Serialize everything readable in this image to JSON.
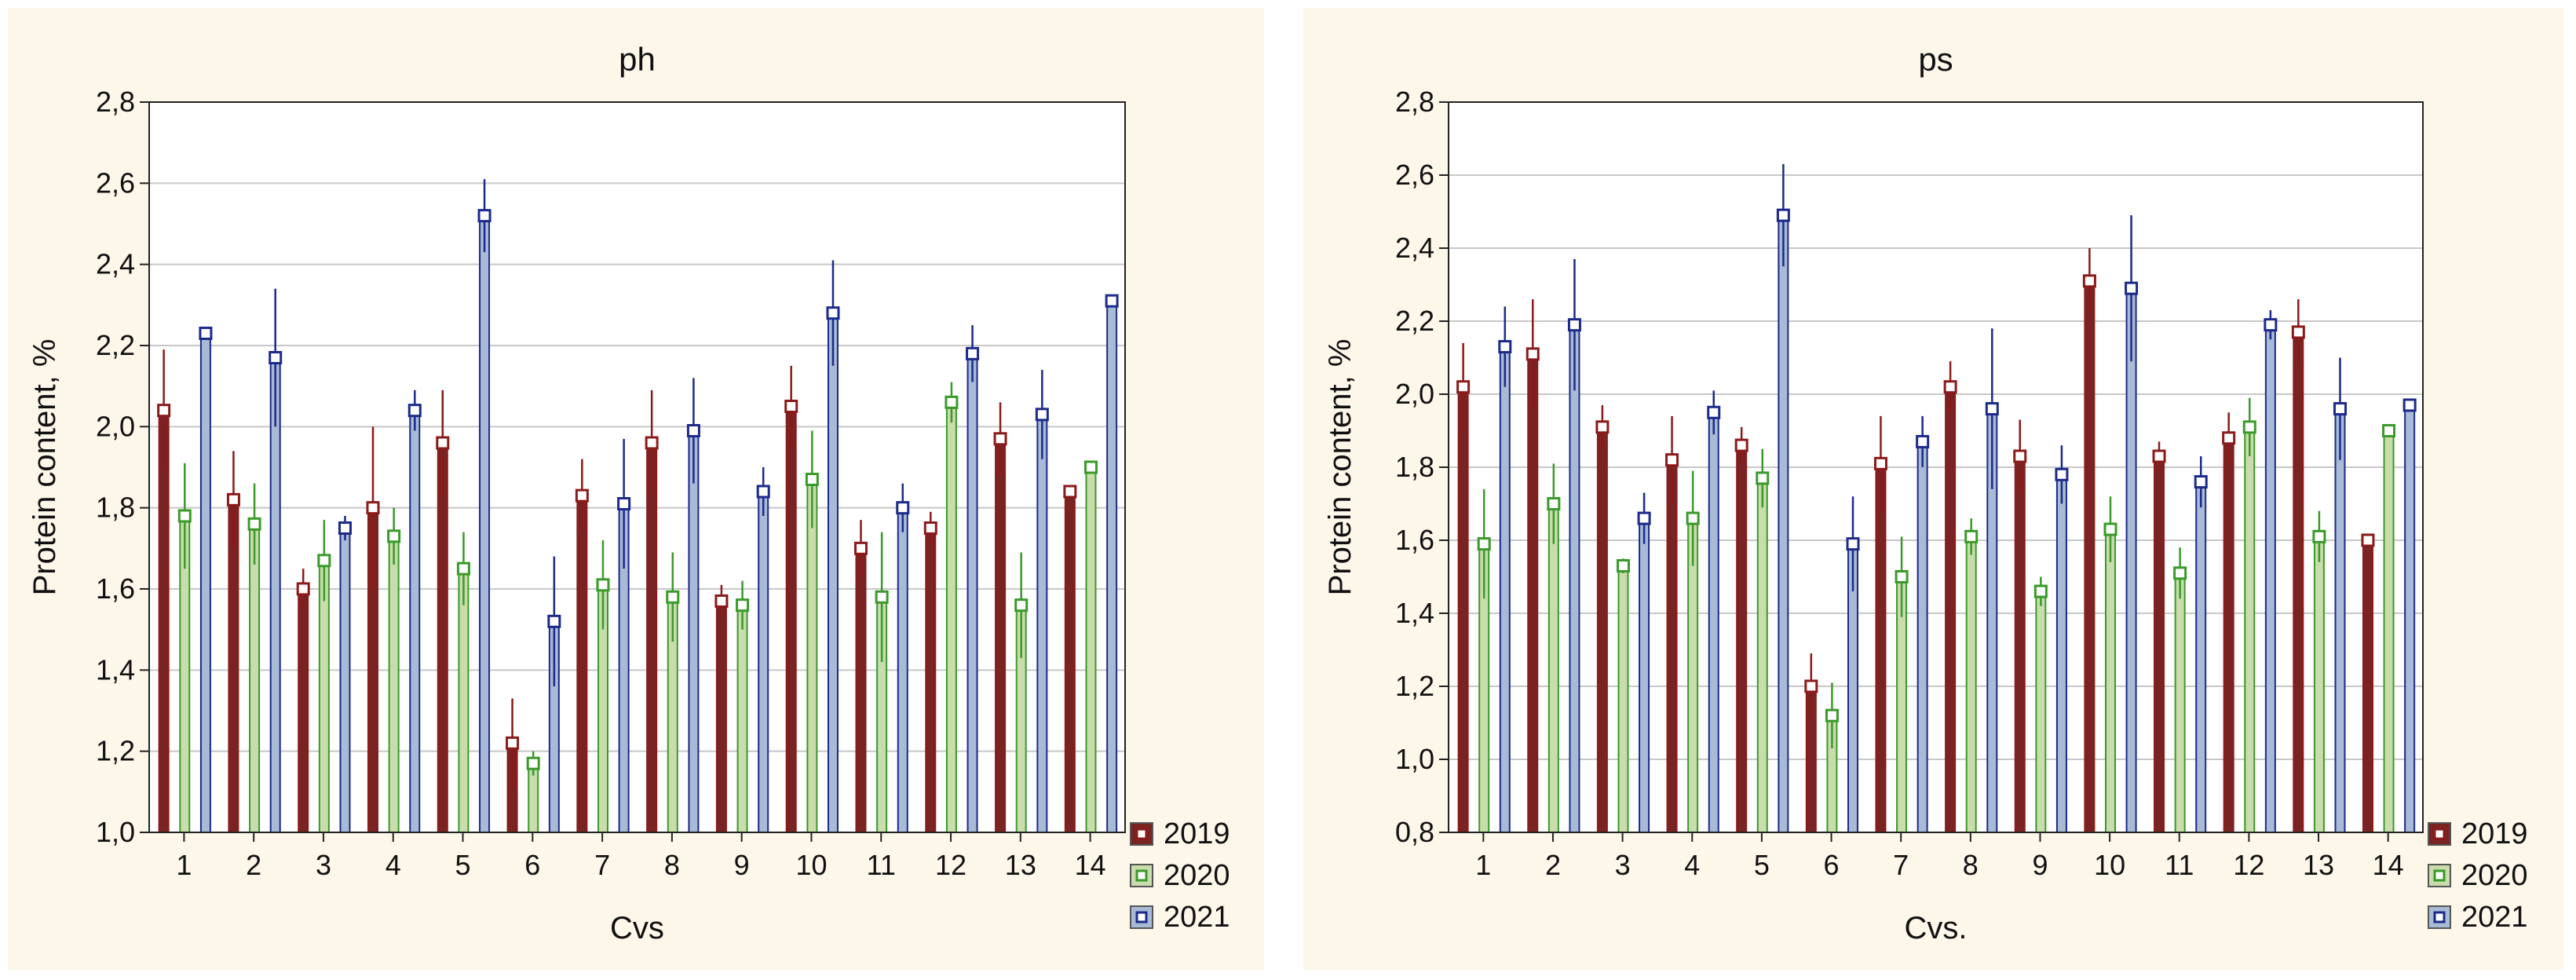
{
  "chart_data": [
    {
      "type": "bar",
      "title": "ph",
      "xlabel": "Cvs",
      "ylabel": "Protein content, %",
      "ylim": [
        1.0,
        2.8
      ],
      "yticks": [
        "1,0",
        "1,2",
        "1,4",
        "1,6",
        "1,8",
        "2,0",
        "2,2",
        "2,4",
        "2,6",
        "2,8"
      ],
      "categories": [
        "1",
        "2",
        "3",
        "4",
        "5",
        "6",
        "7",
        "8",
        "9",
        "10",
        "11",
        "12",
        "13",
        "14"
      ],
      "legend_position": "bottom-right",
      "grid": true,
      "series": [
        {
          "name": "2019",
          "color": "#8b1a1a",
          "fill": "#7a2323",
          "values": [
            2.04,
            1.82,
            1.6,
            1.8,
            1.96,
            1.22,
            1.83,
            1.96,
            1.57,
            2.05,
            1.7,
            1.75,
            1.97,
            1.84
          ],
          "err": [
            0.15,
            0.12,
            0.05,
            0.2,
            0.13,
            0.11,
            0.09,
            0.13,
            0.04,
            0.1,
            0.07,
            0.04,
            0.09,
            0.0
          ]
        },
        {
          "name": "2020",
          "color": "#3a9a2a",
          "fill": "#c8dcac",
          "values": [
            1.78,
            1.76,
            1.67,
            1.73,
            1.65,
            1.17,
            1.61,
            1.58,
            1.56,
            1.87,
            1.58,
            2.06,
            1.56,
            1.9
          ],
          "err": [
            0.13,
            0.1,
            0.1,
            0.07,
            0.09,
            0.03,
            0.11,
            0.11,
            0.06,
            0.12,
            0.16,
            0.05,
            0.13,
            0.0
          ]
        },
        {
          "name": "2021",
          "color": "#1c2a8a",
          "fill": "#a7bad6",
          "values": [
            2.23,
            2.17,
            1.75,
            2.04,
            2.52,
            1.52,
            1.81,
            1.99,
            1.84,
            2.28,
            1.8,
            2.18,
            2.03,
            2.31
          ],
          "err": [
            0.0,
            0.17,
            0.03,
            0.05,
            0.09,
            0.16,
            0.16,
            0.13,
            0.06,
            0.13,
            0.06,
            0.07,
            0.11,
            0.0
          ]
        }
      ]
    },
    {
      "type": "bar",
      "title": "ps",
      "xlabel": "Cvs.",
      "ylabel": "Protein content, %",
      "ylim": [
        0.8,
        2.8
      ],
      "yticks": [
        "0,8",
        "1,0",
        "1,2",
        "1,4",
        "1,6",
        "1,8",
        "2,0",
        "2,2",
        "2,4",
        "2,6",
        "2,8"
      ],
      "categories": [
        "1",
        "2",
        "3",
        "4",
        "5",
        "6",
        "7",
        "8",
        "9",
        "10",
        "11",
        "12",
        "13",
        "14"
      ],
      "legend_position": "bottom-right",
      "grid": true,
      "series": [
        {
          "name": "2019",
          "color": "#8b1a1a",
          "fill": "#7a2323",
          "values": [
            2.02,
            2.11,
            1.91,
            1.82,
            1.86,
            1.2,
            1.81,
            2.02,
            1.83,
            2.31,
            1.83,
            1.88,
            2.17,
            1.6
          ],
          "err": [
            0.12,
            0.15,
            0.06,
            0.12,
            0.05,
            0.09,
            0.13,
            0.07,
            0.1,
            0.09,
            0.04,
            0.07,
            0.09,
            0.0
          ]
        },
        {
          "name": "2020",
          "color": "#3a9a2a",
          "fill": "#c8dcac",
          "values": [
            1.59,
            1.7,
            1.53,
            1.66,
            1.77,
            1.12,
            1.5,
            1.61,
            1.46,
            1.63,
            1.51,
            1.91,
            1.61,
            1.9
          ],
          "err": [
            0.15,
            0.11,
            0.02,
            0.13,
            0.08,
            0.09,
            0.11,
            0.05,
            0.04,
            0.09,
            0.07,
            0.08,
            0.07,
            0.0
          ]
        },
        {
          "name": "2021",
          "color": "#1c2a8a",
          "fill": "#a7bad6",
          "values": [
            2.13,
            2.19,
            1.66,
            1.95,
            2.49,
            1.59,
            1.87,
            1.96,
            1.78,
            2.29,
            1.76,
            2.19,
            1.96,
            1.97
          ],
          "err": [
            0.11,
            0.18,
            0.07,
            0.06,
            0.14,
            0.13,
            0.07,
            0.22,
            0.08,
            0.2,
            0.07,
            0.04,
            0.14,
            0.0
          ]
        }
      ]
    }
  ]
}
